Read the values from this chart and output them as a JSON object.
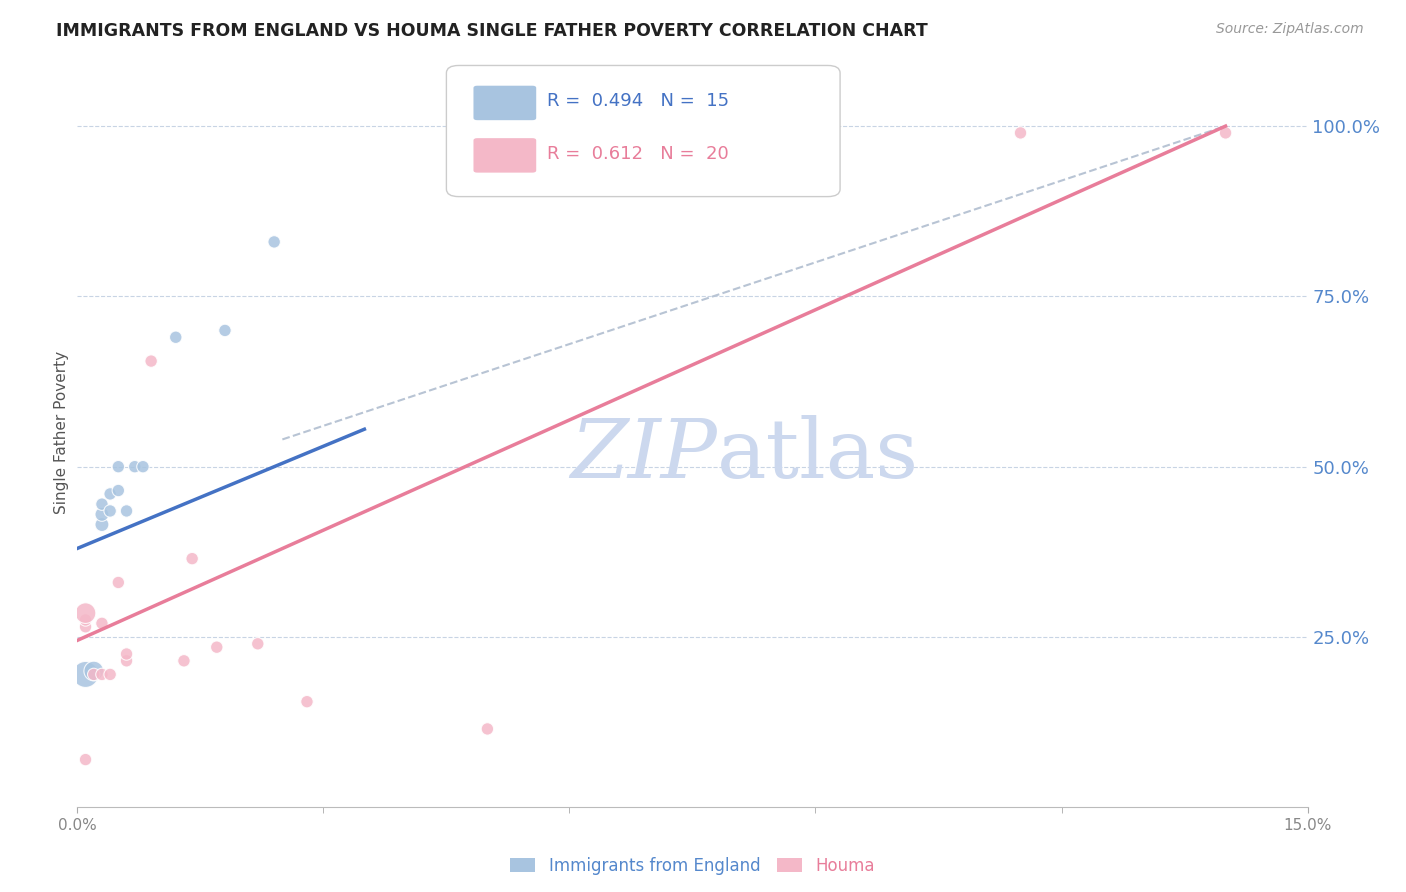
{
  "title": "IMMIGRANTS FROM ENGLAND VS HOUMA SINGLE FATHER POVERTY CORRELATION CHART",
  "source": "Source: ZipAtlas.com",
  "ylabel": "Single Father Poverty",
  "y_ticks_right": [
    "100.0%",
    "75.0%",
    "50.0%",
    "25.0%"
  ],
  "y_tick_vals": [
    1.0,
    0.75,
    0.5,
    0.25
  ],
  "legend_blue_r": "0.494",
  "legend_blue_n": "15",
  "legend_pink_r": "0.612",
  "legend_pink_n": "20",
  "legend_blue_label": "Immigrants from England",
  "legend_pink_label": "Houma",
  "blue_color": "#a8c4e0",
  "pink_color": "#f4b8c8",
  "blue_line_color": "#4472c4",
  "pink_line_color": "#e87d9a",
  "dashed_line_color": "#b8c4d4",
  "watermark_color": "#ccd8ee",
  "right_axis_color": "#5588cc",
  "blue_scatter": [
    [
      0.001,
      0.195
    ],
    [
      0.002,
      0.2
    ],
    [
      0.003,
      0.415
    ],
    [
      0.003,
      0.43
    ],
    [
      0.003,
      0.445
    ],
    [
      0.004,
      0.435
    ],
    [
      0.004,
      0.46
    ],
    [
      0.005,
      0.465
    ],
    [
      0.005,
      0.5
    ],
    [
      0.006,
      0.435
    ],
    [
      0.007,
      0.5
    ],
    [
      0.008,
      0.5
    ],
    [
      0.012,
      0.69
    ],
    [
      0.018,
      0.7
    ],
    [
      0.024,
      0.83
    ]
  ],
  "blue_sizes": [
    350,
    200,
    100,
    100,
    80,
    80,
    80,
    80,
    80,
    80,
    80,
    80,
    80,
    80,
    80
  ],
  "pink_scatter": [
    [
      0.001,
      0.07
    ],
    [
      0.001,
      0.265
    ],
    [
      0.001,
      0.275
    ],
    [
      0.001,
      0.285
    ],
    [
      0.002,
      0.195
    ],
    [
      0.003,
      0.27
    ],
    [
      0.003,
      0.195
    ],
    [
      0.004,
      0.195
    ],
    [
      0.005,
      0.33
    ],
    [
      0.006,
      0.215
    ],
    [
      0.006,
      0.225
    ],
    [
      0.009,
      0.655
    ],
    [
      0.013,
      0.215
    ],
    [
      0.014,
      0.365
    ],
    [
      0.017,
      0.235
    ],
    [
      0.022,
      0.24
    ],
    [
      0.028,
      0.155
    ],
    [
      0.05,
      0.115
    ],
    [
      0.115,
      0.99
    ],
    [
      0.14,
      0.99
    ]
  ],
  "pink_sizes": [
    80,
    80,
    80,
    220,
    80,
    80,
    80,
    80,
    80,
    80,
    80,
    80,
    80,
    80,
    80,
    80,
    80,
    80,
    80,
    80
  ],
  "xlim": [
    0.0,
    0.15
  ],
  "ylim": [
    0.0,
    1.1
  ],
  "blue_line_x": [
    0.0,
    0.035
  ],
  "blue_line_y": [
    0.38,
    0.555
  ],
  "pink_line_x": [
    0.0,
    0.14
  ],
  "pink_line_y": [
    0.245,
    1.0
  ],
  "dash_line_x": [
    0.025,
    0.14
  ],
  "dash_line_y": [
    0.54,
    1.0
  ]
}
